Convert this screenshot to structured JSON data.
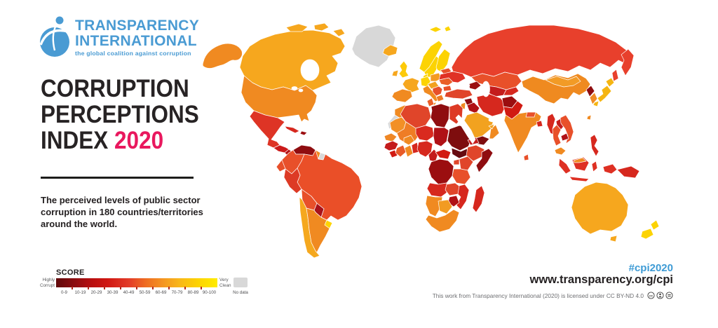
{
  "logo": {
    "line1": "TRANSPARENCY",
    "line2": "INTERNATIONAL",
    "tagline": "the global coalition against corruption",
    "color": "#4a9bd3"
  },
  "title": {
    "line1": "CORRUPTION",
    "line2": "PERCEPTIONS",
    "line3_prefix": "INDEX ",
    "line3_year": "2020",
    "year_color": "#e9185e"
  },
  "subtitle": {
    "lines": [
      "The perceived levels of public sector",
      "corruption in 180 countries/territories",
      "around the world."
    ]
  },
  "legend": {
    "title": "SCORE",
    "high_1": "Highly",
    "high_2": "Corrupt",
    "clean_1": "Very",
    "clean_2": "Clean",
    "ticks": [
      "0-9",
      "10-19",
      "20-29",
      "30-39",
      "40-49",
      "50-59",
      "60-69",
      "70-79",
      "80-89",
      "90-100"
    ],
    "no_data": "No data",
    "no_data_color": "#d8d8d8",
    "gradient": [
      "#60090b 0%",
      "#8f0d10 12%",
      "#b80f10 22%",
      "#d01712 32%",
      "#e23b28 45%",
      "#ee6a22 55%",
      "#f49422 66%",
      "#f8b61b 76%",
      "#fdd302 88%",
      "#ffec00 100%"
    ]
  },
  "footer": {
    "hashtag": "#cpi2020",
    "hashtag_color": "#3e9bd5",
    "url": "www.transparency.org/cpi",
    "license": "This work from Transparency International (2020) is licensed under CC BY-ND 4.0",
    "license_icons": [
      "cc",
      "by",
      "nd"
    ]
  },
  "map": {
    "regions": {
      "alaska": "#f08a21",
      "canada": "#f6a71e",
      "greenland": "#d8d8d8",
      "usa": "#f08a21",
      "mexico": "#de3425",
      "guatemala-honduras": "#cb1a1a",
      "nicaragua-panama": "#b51317",
      "cuba": "#d6281e",
      "hispaniola": "#9b0e10",
      "iceland": "#f6a71e",
      "venezuela": "#8f0d10",
      "colombia": "#e8502a",
      "guyana": "#f08a21",
      "suriname": "#d8d8d8",
      "ecuador": "#e8502a",
      "peru": "#dd3a25",
      "brazil": "#ea4f28",
      "bolivia": "#e8502a",
      "paraguay": "#a9121a",
      "uruguay": "#fed402",
      "chile": "#f5a81e",
      "argentina": "#f08a21",
      "uk": "#fdca08",
      "ireland": "#f6a71e",
      "norway": "#fcd303",
      "sweden": "#fcd303",
      "finland": "#fcd303",
      "svalbard": "#fcd303",
      "denmark": "#fcd303",
      "baltics": "#f2a21f",
      "germany": "#fcd303",
      "france": "#f6a71e",
      "iberia": "#f08a21",
      "poland": "#f49b22",
      "czech-austria": "#f2a21f",
      "italy": "#f08a21",
      "balkans": "#e8502a",
      "greece": "#ee7a24",
      "hungary-romania": "#ea5f28",
      "bulgaria": "#e8502a",
      "ukraine": "#e03125",
      "belarus": "#e8502a",
      "russia": "#e8402c",
      "kazakhstan": "#e8502a",
      "uzbek-turkmen": "#c41c1c",
      "kyrgyz-tajik": "#d6281e",
      "caucasus": "#9b0e10",
      "turkey": "#e0452a",
      "syria": "#8f0d10",
      "iraq": "#b01116",
      "jordan-israel": "#f08a21",
      "iran": "#d6281e",
      "afghanistan": "#9b0e10",
      "pakistan": "#d11a12",
      "saudi": "#f2a21f",
      "yemen": "#7e0d0e",
      "oman": "#f08a21",
      "uae": "#f2a21f",
      "india": "#f08a21",
      "nepal": "#e8502a",
      "bangladesh": "#d6281e",
      "sri-lanka": "#e8502a",
      "china": "#ef8a20",
      "mongolia": "#f29b26",
      "north-korea": "#8f0d10",
      "south-korea": "#f08c26",
      "japan": "#f5b512",
      "taiwan": "#f08a21",
      "myanmar": "#d6281e",
      "thailand": "#e8502a",
      "laos": "#c41c1c",
      "cambodia": "#b01116",
      "vietnam": "#e8502a",
      "malaysia": "#f08a21",
      "indonesia": "#de3023",
      "philippines": "#d6281e",
      "png": "#d6281e",
      "australia": "#f6a71e",
      "nz": "#fcd303",
      "morocco": "#f08a21",
      "western-sahara": "#d8d8d8",
      "algeria": "#e0452a",
      "tunisia": "#ea5f28",
      "libya": "#8f0d10",
      "egypt": "#dd3a25",
      "mauritania": "#f29026",
      "mali": "#ef7d25",
      "niger": "#d92a1f",
      "chad": "#b01116",
      "sudan": "#7e0d0e",
      "south-sudan": "#670a10",
      "senegal": "#ef8725",
      "guinea": "#c41c1c",
      "sierra-liberia": "#d11a12",
      "cote-divoire": "#e85a28",
      "burkina": "#f08a21",
      "ghana": "#f08a21",
      "togo-benin": "#d6281e",
      "nigeria": "#d6281e",
      "cameroon": "#c41c1c",
      "car": "#d11a12",
      "eritrea": "#c41c1c",
      "ethiopia": "#e0452a",
      "somalia": "#8f0d10",
      "drc": "#9b0e10",
      "uganda": "#e0452a",
      "kenya": "#e0452a",
      "tanzania": "#e8502a",
      "angola": "#d6281e",
      "zambia": "#e0452a",
      "mozambique": "#d6281e",
      "zimbabwe": "#b01116",
      "namibia": "#f08a21",
      "botswana": "#f29b22",
      "south-africa": "#f08a21",
      "madagascar": "#d6281e"
    }
  }
}
